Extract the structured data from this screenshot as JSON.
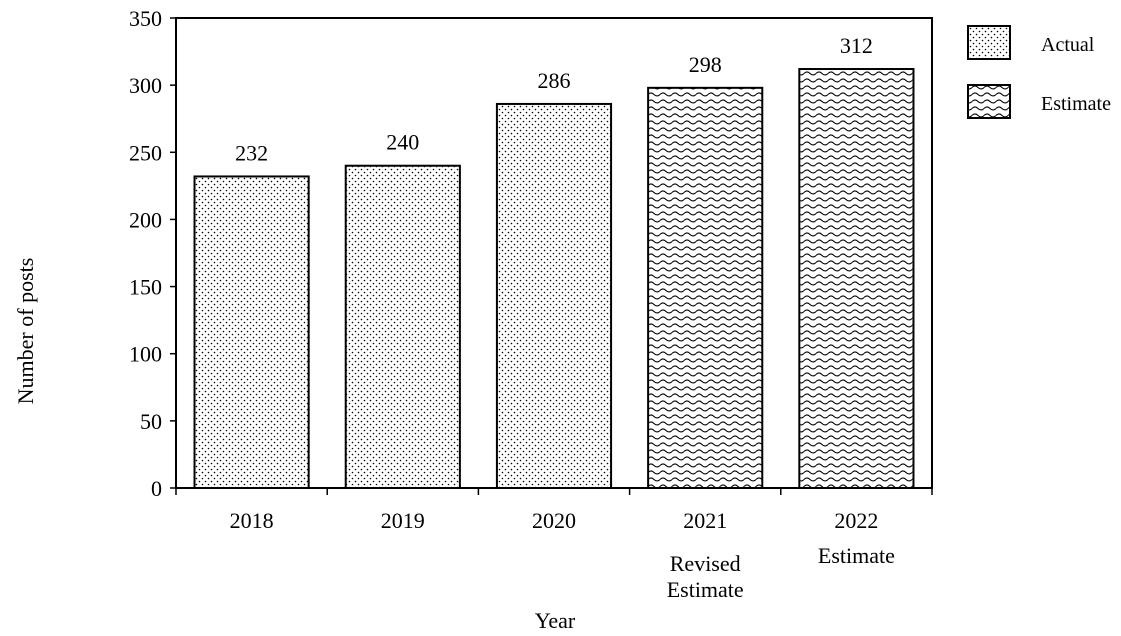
{
  "chart_data": {
    "type": "bar",
    "title": "",
    "xlabel": "Year",
    "ylabel": "Number of posts",
    "ylim": [
      0,
      350
    ],
    "yticks": [
      "0",
      "50",
      "100",
      "150",
      "200",
      "250",
      "300",
      "350"
    ],
    "categories": [
      "2018",
      "2019",
      "2020",
      "2021",
      "2022"
    ],
    "category_notes": [
      "",
      "",
      "",
      "Revised\nEstimate",
      "Estimate"
    ],
    "values": [
      232,
      240,
      286,
      298,
      312
    ],
    "value_labels": [
      "232",
      "240",
      "286",
      "298",
      "312"
    ],
    "bar_series": [
      "Actual",
      "Actual",
      "Actual",
      "Estimate",
      "Estimate"
    ],
    "series": [
      {
        "name": "Actual",
        "pattern": "dots",
        "color": "#000000"
      },
      {
        "name": "Estimate",
        "pattern": "waves",
        "color": "#000000"
      }
    ],
    "legend_position": "right",
    "grid": false
  }
}
